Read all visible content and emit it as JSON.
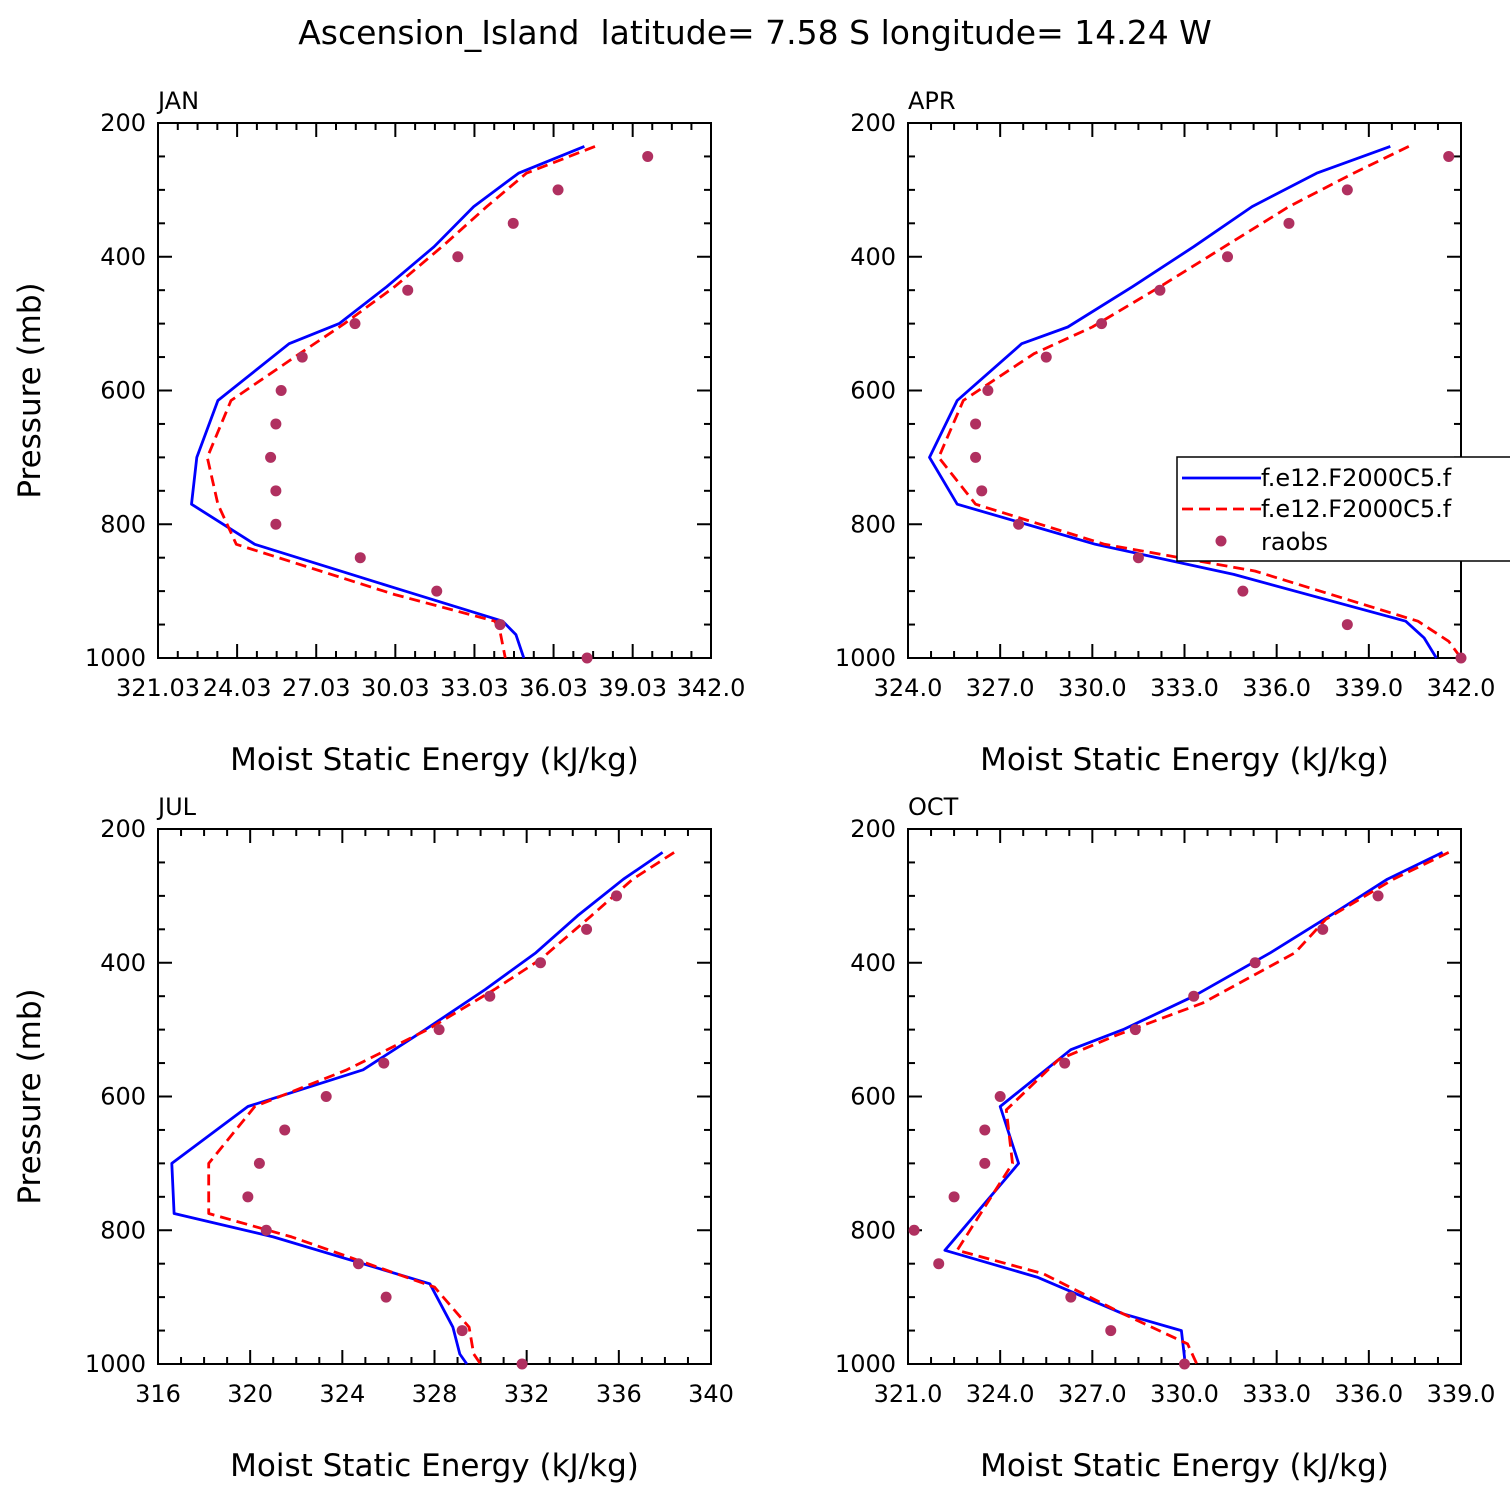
{
  "figure": {
    "title": "Ascension_Island  latitude= 7.58 S longitude= 14.24 W"
  },
  "chart_data": [
    {
      "type": "line",
      "panel": "JAN",
      "xlabel": "Moist Static Energy (kJ/kg)",
      "ylabel": "Pressure (mb)",
      "xlim": [
        321.03,
        342.0
      ],
      "ylim": [
        1000,
        200
      ],
      "xticks": [
        321.03,
        324.03,
        327.03,
        330.03,
        333.03,
        336.03,
        339.03,
        342.0
      ],
      "xtick_labels": [
        "321.03",
        "24.03",
        "27.03",
        "30.03",
        "33.03",
        "36.03",
        "39.03",
        "342.0"
      ],
      "yticks": [
        200,
        400,
        600,
        800,
        1000
      ],
      "ytick_labels": [
        "200",
        "400",
        "600",
        "800",
        "1000"
      ],
      "series": [
        {
          "name": "f.e12.F2000C5.f",
          "color": "#0000ff",
          "dash": "solid",
          "points": [
            [
              337.2,
              235
            ],
            [
              334.7,
              275
            ],
            [
              333.0,
              325
            ],
            [
              331.5,
              385
            ],
            [
              329.7,
              445
            ],
            [
              327.9,
              500
            ],
            [
              326.0,
              530
            ],
            [
              323.3,
              615
            ],
            [
              322.5,
              700
            ],
            [
              322.3,
              770
            ],
            [
              324.7,
              830
            ],
            [
              330.0,
              895
            ],
            [
              334.1,
              945
            ],
            [
              334.6,
              965
            ],
            [
              334.9,
              1000
            ]
          ]
        },
        {
          "name": "f.e12.F2000C5.f",
          "color": "#ff0000",
          "dash": "dashed",
          "points": [
            [
              337.6,
              235
            ],
            [
              335.0,
              275
            ],
            [
              333.5,
              325
            ],
            [
              331.8,
              385
            ],
            [
              330.0,
              445
            ],
            [
              328.1,
              500
            ],
            [
              326.4,
              545
            ],
            [
              323.8,
              615
            ],
            [
              322.9,
              700
            ],
            [
              323.3,
              770
            ],
            [
              324.0,
              830
            ],
            [
              330.0,
              905
            ],
            [
              333.8,
              945
            ],
            [
              334.0,
              960
            ],
            [
              334.2,
              1000
            ]
          ]
        },
        {
          "name": "raobs",
          "color": "#b03060",
          "dash": "markers",
          "points": [
            [
              339.6,
              250
            ],
            [
              336.2,
              300
            ],
            [
              334.5,
              350
            ],
            [
              332.4,
              400
            ],
            [
              330.5,
              450
            ],
            [
              328.5,
              500
            ],
            [
              326.5,
              550
            ],
            [
              325.7,
              600
            ],
            [
              325.5,
              650
            ],
            [
              325.3,
              700
            ],
            [
              325.5,
              750
            ],
            [
              325.5,
              800
            ],
            [
              328.7,
              850
            ],
            [
              331.6,
              900
            ],
            [
              334.0,
              950
            ],
            [
              337.3,
              1000
            ]
          ]
        }
      ]
    },
    {
      "type": "line",
      "panel": "APR",
      "xlabel": "Moist Static Energy (kJ/kg)",
      "ylabel": "",
      "xlim": [
        324.0,
        342.0
      ],
      "ylim": [
        1000,
        200
      ],
      "xticks": [
        324.0,
        327.0,
        330.0,
        333.0,
        336.0,
        339.0,
        342.0
      ],
      "xtick_labels": [
        "324.0",
        "327.0",
        "330.0",
        "333.0",
        "336.0",
        "339.0",
        "342.0"
      ],
      "yticks": [
        200,
        400,
        600,
        800,
        1000
      ],
      "ytick_labels": [
        "200",
        "400",
        "600",
        "800",
        "1000"
      ],
      "legend": {
        "entries": [
          "f.e12.F2000C5.f",
          "f.e12.F2000C5.f",
          "raobs"
        ],
        "placement": "right"
      },
      "series": [
        {
          "name": "f.e12.F2000C5.f",
          "color": "#0000ff",
          "dash": "solid",
          "points": [
            [
              339.7,
              235
            ],
            [
              337.3,
              275
            ],
            [
              335.2,
              325
            ],
            [
              333.3,
              385
            ],
            [
              331.3,
              445
            ],
            [
              329.2,
              505
            ],
            [
              327.7,
              530
            ],
            [
              325.6,
              615
            ],
            [
              324.7,
              700
            ],
            [
              325.6,
              770
            ],
            [
              330.1,
              830
            ],
            [
              334.6,
              875
            ],
            [
              340.2,
              945
            ],
            [
              340.8,
              970
            ],
            [
              341.2,
              1000
            ]
          ]
        },
        {
          "name": "f.e12.F2000C5.f",
          "color": "#ff0000",
          "dash": "dashed",
          "points": [
            [
              340.3,
              235
            ],
            [
              338.5,
              275
            ],
            [
              336.4,
              325
            ],
            [
              334.3,
              385
            ],
            [
              332.2,
              445
            ],
            [
              330.0,
              505
            ],
            [
              328.1,
              545
            ],
            [
              325.8,
              615
            ],
            [
              325.0,
              700
            ],
            [
              326.2,
              770
            ],
            [
              330.4,
              830
            ],
            [
              335.3,
              870
            ],
            [
              340.6,
              945
            ],
            [
              341.6,
              975
            ],
            [
              342.0,
              1000
            ]
          ]
        },
        {
          "name": "raobs",
          "color": "#b03060",
          "dash": "markers",
          "points": [
            [
              341.6,
              250
            ],
            [
              338.3,
              300
            ],
            [
              336.4,
              350
            ],
            [
              334.4,
              400
            ],
            [
              332.2,
              450
            ],
            [
              330.3,
              500
            ],
            [
              328.5,
              550
            ],
            [
              326.6,
              600
            ],
            [
              326.2,
              650
            ],
            [
              326.2,
              700
            ],
            [
              326.4,
              750
            ],
            [
              327.6,
              800
            ],
            [
              331.5,
              850
            ],
            [
              334.9,
              900
            ],
            [
              338.3,
              950
            ],
            [
              342.0,
              1000
            ]
          ]
        }
      ]
    },
    {
      "type": "line",
      "panel": "JUL",
      "xlabel": "Moist Static Energy (kJ/kg)",
      "ylabel": "Pressure (mb)",
      "xlim": [
        316,
        340
      ],
      "ylim": [
        1000,
        200
      ],
      "xticks": [
        316,
        320,
        324,
        328,
        332,
        336,
        340
      ],
      "xtick_labels": [
        "316",
        "320",
        "324",
        "328",
        "332",
        "336",
        "340"
      ],
      "yticks": [
        200,
        400,
        600,
        800,
        1000
      ],
      "ytick_labels": [
        "200",
        "400",
        "600",
        "800",
        "1000"
      ],
      "series": [
        {
          "name": "f.e12.F2000C5.f",
          "color": "#0000ff",
          "dash": "solid",
          "points": [
            [
              337.9,
              235
            ],
            [
              336.2,
              275
            ],
            [
              334.2,
              330
            ],
            [
              332.4,
              385
            ],
            [
              330.2,
              440
            ],
            [
              327.6,
              500
            ],
            [
              324.9,
              560
            ],
            [
              319.9,
              615
            ],
            [
              316.6,
              700
            ],
            [
              316.7,
              775
            ],
            [
              321.0,
              810
            ],
            [
              327.8,
              880
            ],
            [
              328.8,
              945
            ],
            [
              329.1,
              985
            ],
            [
              329.4,
              1000
            ]
          ]
        },
        {
          "name": "f.e12.F2000C5.f",
          "color": "#ff0000",
          "dash": "dashed",
          "points": [
            [
              338.4,
              235
            ],
            [
              336.6,
              275
            ],
            [
              334.8,
              330
            ],
            [
              332.6,
              395
            ],
            [
              330.6,
              440
            ],
            [
              327.7,
              500
            ],
            [
              324.2,
              560
            ],
            [
              320.2,
              615
            ],
            [
              318.2,
              700
            ],
            [
              318.2,
              775
            ],
            [
              321.8,
              810
            ],
            [
              328.0,
              885
            ],
            [
              329.5,
              945
            ],
            [
              329.7,
              985
            ],
            [
              330.0,
              1000
            ]
          ]
        },
        {
          "name": "raobs",
          "color": "#b03060",
          "dash": "markers",
          "points": [
            [
              335.9,
              300
            ],
            [
              334.6,
              350
            ],
            [
              332.6,
              400
            ],
            [
              330.4,
              450
            ],
            [
              328.2,
              500
            ],
            [
              325.8,
              550
            ],
            [
              323.3,
              600
            ],
            [
              321.5,
              650
            ],
            [
              320.4,
              700
            ],
            [
              319.9,
              750
            ],
            [
              320.7,
              800
            ],
            [
              324.7,
              850
            ],
            [
              325.9,
              900
            ],
            [
              329.2,
              950
            ],
            [
              331.8,
              1000
            ]
          ]
        }
      ]
    },
    {
      "type": "line",
      "panel": "OCT",
      "xlabel": "Moist Static Energy (kJ/kg)",
      "ylabel": "",
      "xlim": [
        321.0,
        339.0
      ],
      "ylim": [
        1000,
        200
      ],
      "xticks": [
        321.0,
        324.0,
        327.0,
        330.0,
        333.0,
        336.0,
        339.0
      ],
      "xtick_labels": [
        "321.0",
        "324.0",
        "327.0",
        "330.0",
        "333.0",
        "336.0",
        "339.0"
      ],
      "yticks": [
        200,
        400,
        600,
        800,
        1000
      ],
      "ytick_labels": [
        "200",
        "400",
        "600",
        "800",
        "1000"
      ],
      "series": [
        {
          "name": "f.e12.F2000C5.f",
          "color": "#0000ff",
          "dash": "solid",
          "points": [
            [
              338.4,
              235
            ],
            [
              336.6,
              275
            ],
            [
              334.9,
              325
            ],
            [
              332.8,
              385
            ],
            [
              330.3,
              450
            ],
            [
              328.0,
              500
            ],
            [
              326.3,
              530
            ],
            [
              324.0,
              615
            ],
            [
              324.6,
              700
            ],
            [
              322.2,
              830
            ],
            [
              325.2,
              870
            ],
            [
              328.0,
              925
            ],
            [
              329.9,
              950
            ],
            [
              330.0,
              990
            ],
            [
              330.0,
              1000
            ]
          ]
        },
        {
          "name": "f.e12.F2000C5.f",
          "color": "#ff0000",
          "dash": "dashed",
          "points": [
            [
              338.6,
              235
            ],
            [
              336.8,
              275
            ],
            [
              334.6,
              335
            ],
            [
              333.6,
              385
            ],
            [
              330.6,
              460
            ],
            [
              327.7,
              510
            ],
            [
              325.9,
              545
            ],
            [
              324.2,
              620
            ],
            [
              324.4,
              700
            ],
            [
              322.6,
              830
            ],
            [
              325.4,
              865
            ],
            [
              328.0,
              925
            ],
            [
              330.1,
              970
            ],
            [
              330.4,
              1000
            ]
          ]
        },
        {
          "name": "raobs",
          "color": "#b03060",
          "dash": "markers",
          "points": [
            [
              336.3,
              300
            ],
            [
              334.5,
              350
            ],
            [
              332.3,
              400
            ],
            [
              330.3,
              450
            ],
            [
              328.4,
              500
            ],
            [
              326.1,
              550
            ],
            [
              324.0,
              600
            ],
            [
              323.5,
              650
            ],
            [
              323.5,
              700
            ],
            [
              322.5,
              750
            ],
            [
              321.2,
              800
            ],
            [
              322.0,
              850
            ],
            [
              326.3,
              900
            ],
            [
              327.6,
              950
            ],
            [
              330.0,
              1000
            ]
          ]
        }
      ]
    }
  ]
}
